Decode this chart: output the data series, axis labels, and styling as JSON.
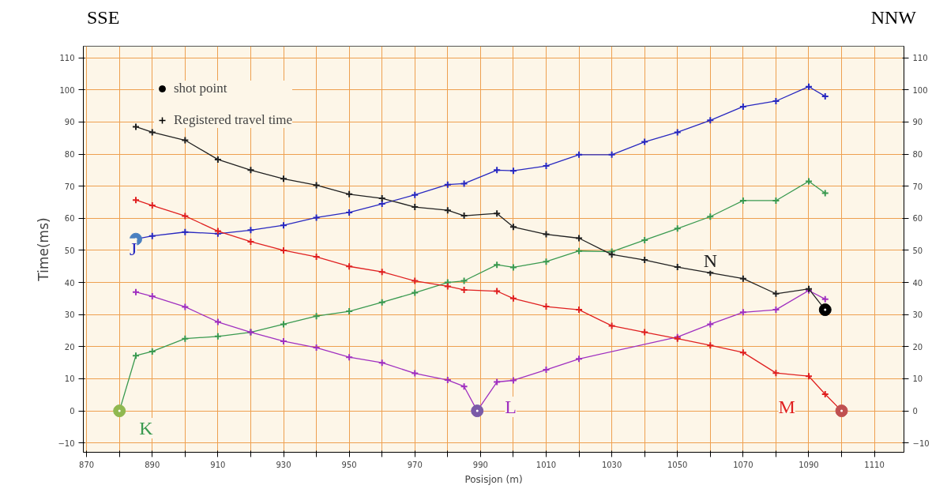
{
  "chart_data": {
    "type": "line",
    "xlabel": "Posisjon (m)",
    "ylabel": "Time(ms)",
    "annotations": [
      "Registered travel time",
      "SSE",
      "NNW"
    ],
    "xlim": [
      869,
      1119
    ],
    "ylim": [
      -12.9,
      113.6
    ],
    "y2lim": [
      -12.9,
      113.6
    ],
    "xticks": [
      870,
      {
        "value": 880,
        "label": null
      },
      890,
      {
        "value": 900,
        "label": null
      },
      910,
      {
        "value": 920,
        "label": null
      },
      930,
      {
        "value": 940,
        "label": null
      },
      950,
      {
        "value": 960,
        "label": null
      },
      970,
      {
        "value": 980,
        "label": null
      },
      990,
      {
        "value": 1000,
        "label": null
      },
      1010,
      {
        "value": 1020,
        "label": null
      },
      1030,
      {
        "value": 1040,
        "label": null
      },
      1050,
      {
        "value": 1060,
        "label": null
      },
      1070,
      {
        "value": 1080,
        "label": null
      },
      1090,
      {
        "value": 1100,
        "label": null
      },
      1110
    ],
    "yticks": [
      -10,
      0,
      10,
      20,
      30,
      40,
      50,
      60,
      70,
      80,
      90,
      100,
      110
    ],
    "y2ticks": [
      -10,
      0,
      10,
      20,
      30,
      40,
      50,
      60,
      70,
      80,
      90,
      100,
      110
    ],
    "grid": true,
    "legend": "top left",
    "marker": "cross",
    "line_style": "solid",
    "series": [
      {
        "name": "J",
        "color": "#2828c0",
        "x": [
          885,
          890,
          900,
          910,
          920,
          930,
          940,
          950,
          960,
          970,
          980,
          985,
          995,
          1000,
          1010,
          1020,
          1030,
          1040,
          1050,
          1060,
          1070,
          1080,
          1090,
          1095
        ],
        "values": [
          53.5,
          54.5,
          55.7,
          55.2,
          56.3,
          57.8,
          60.2,
          61.8,
          64.5,
          67.3,
          70.5,
          70.8,
          75,
          74.8,
          76.3,
          79.8,
          79.8,
          83.8,
          86.8,
          90.5,
          94.8,
          96.5,
          101,
          98
        ]
      },
      {
        "name": "K",
        "color": "#3a9a50",
        "x": [
          880,
          885,
          890,
          900,
          910,
          920,
          930,
          940,
          950,
          960,
          970,
          980,
          985,
          995,
          1000,
          1010,
          1020,
          1030,
          1040,
          1050,
          1060,
          1070,
          1080,
          1090,
          1095
        ],
        "values": [
          0,
          17.2,
          18.5,
          22.5,
          23.2,
          24.5,
          27,
          29.5,
          31,
          33.8,
          36.8,
          40,
          40.5,
          45.5,
          44.7,
          46.5,
          49.8,
          49.6,
          53.2,
          56.8,
          60.5,
          65.5,
          65.5,
          71.5,
          67.8
        ]
      },
      {
        "name": "L",
        "color": "#a030c0",
        "x": [
          885,
          890,
          900,
          910,
          920,
          930,
          940,
          950,
          960,
          970,
          980,
          985,
          989,
          995,
          1000,
          1010,
          1020,
          1050,
          1060,
          1070,
          1080,
          1090,
          1095
        ],
        "values": [
          37,
          35.7,
          32.4,
          27.7,
          24.5,
          21.7,
          19.7,
          16.7,
          15,
          11.7,
          9.6,
          7.6,
          0,
          9,
          9.5,
          12.8,
          16.2,
          23,
          27,
          30.7,
          31.5,
          37.5,
          34.8
        ]
      },
      {
        "name": "M",
        "color": "#e02020",
        "x": [
          885,
          890,
          900,
          910,
          920,
          930,
          940,
          950,
          960,
          970,
          980,
          985,
          995,
          1000,
          1010,
          1020,
          1030,
          1040,
          1050,
          1060,
          1070,
          1080,
          1090,
          1095,
          1100
        ],
        "values": [
          65.7,
          64,
          60.7,
          56,
          52.7,
          50,
          48,
          45,
          43.3,
          40.5,
          38.8,
          37.7,
          37.3,
          35,
          32.5,
          31.5,
          26.5,
          24.5,
          22.5,
          20.4,
          18.2,
          11.8,
          10.8,
          5.2,
          0
        ]
      },
      {
        "name": "N",
        "color": "#202020",
        "x": [
          885,
          890,
          900,
          910,
          920,
          930,
          940,
          950,
          960,
          970,
          980,
          985,
          995,
          1000,
          1010,
          1020,
          1030,
          1040,
          1050,
          1060,
          1070,
          1080,
          1090,
          1095
        ],
        "values": [
          88.5,
          86.8,
          84.3,
          78.3,
          75,
          72.3,
          70.3,
          67.5,
          66.2,
          63.5,
          62.5,
          60.8,
          61.5,
          57.3,
          55,
          53.8,
          48.7,
          47,
          44.8,
          43,
          41.2,
          36.5,
          38,
          31.5
        ]
      },
      {
        "name": "shot point",
        "type": "scatter",
        "marker": "circle",
        "color": "#000000",
        "x": [
          885,
          880,
          989,
          1100,
          1095
        ],
        "values": [
          53.5,
          0,
          0,
          0,
          31.5
        ],
        "colors": [
          "#4a80c0",
          "#90b850",
          "#7a5aa8",
          "#c05050",
          "#000000"
        ]
      }
    ]
  }
}
